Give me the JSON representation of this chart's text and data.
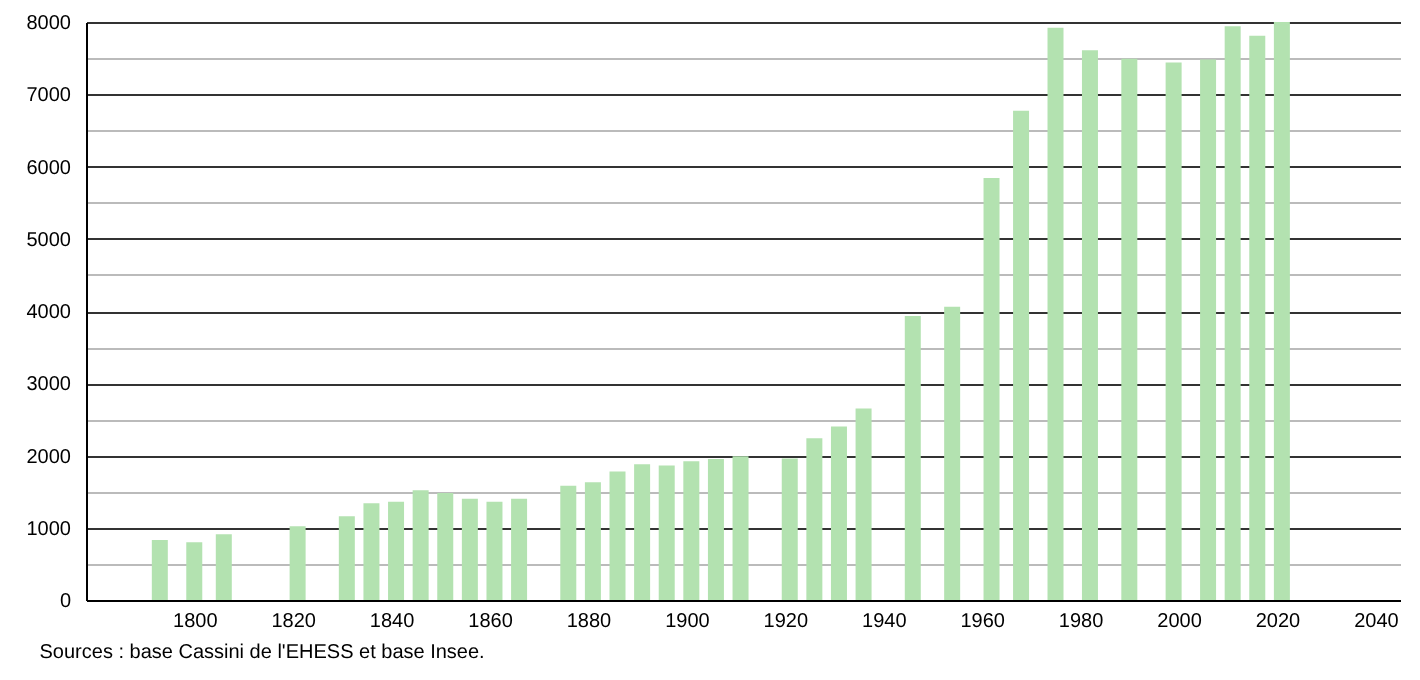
{
  "chart_data": {
    "type": "bar",
    "x": [
      1793,
      1800,
      1806,
      1821,
      1831,
      1836,
      1841,
      1846,
      1851,
      1856,
      1861,
      1866,
      1876,
      1881,
      1886,
      1891,
      1896,
      1901,
      1906,
      1911,
      1921,
      1926,
      1931,
      1936,
      1946,
      1954,
      1962,
      1968,
      1975,
      1982,
      1990,
      1999,
      2006,
      2011,
      2016,
      2021
    ],
    "values": [
      830,
      800,
      910,
      1020,
      1160,
      1340,
      1360,
      1520,
      1480,
      1400,
      1360,
      1400,
      1580,
      1630,
      1780,
      1880,
      1860,
      1920,
      1950,
      1990,
      1960,
      2240,
      2400,
      2650,
      3930,
      4060,
      5840,
      6770,
      7920,
      7610,
      7490,
      7440,
      7480,
      7940,
      7810,
      8000
    ],
    "color": "#b3e2b0",
    "xlim": [
      1778,
      2045
    ],
    "xticks": [
      1800,
      1820,
      1840,
      1860,
      1880,
      1900,
      1920,
      1940,
      1960,
      1980,
      2000,
      2020,
      2040
    ],
    "ylim": [
      0,
      8000
    ],
    "yticks": [
      0,
      {
        "value": 500,
        "label": null
      },
      1000,
      {
        "value": 1500,
        "label": null
      },
      2000,
      {
        "value": 2500,
        "label": null
      },
      3000,
      {
        "value": 3500,
        "label": null
      },
      4000,
      {
        "value": 4500,
        "label": null
      },
      5000,
      {
        "value": 5500,
        "label": null
      },
      6000,
      {
        "value": 6500,
        "label": null
      },
      7000,
      {
        "value": 7500,
        "label": null
      },
      8000
    ],
    "grid": "y",
    "annotations": [
      "Sources : base Cassini de l'EHESS et base Insee."
    ]
  }
}
